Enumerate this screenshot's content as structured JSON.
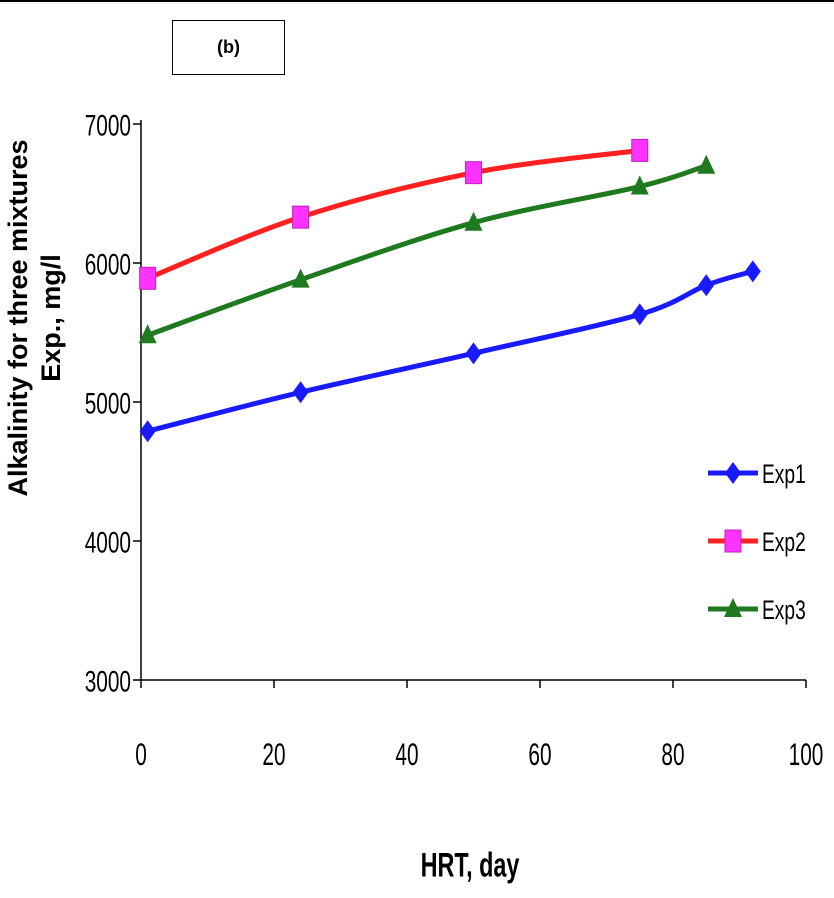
{
  "panel_label": "(b)",
  "chart_data": {
    "type": "line",
    "title": "",
    "xlabel": "HRT, day",
    "ylabel_line1": "Alkalinity for three mixtures",
    "ylabel_line2": "Exp., mg/l",
    "xlim": [
      0,
      100
    ],
    "ylim": [
      3000,
      7000
    ],
    "xticks": [
      0,
      20,
      40,
      60,
      80,
      100
    ],
    "yticks": [
      3000,
      4000,
      5000,
      6000,
      7000
    ],
    "xtick_labels": [
      "0",
      "20",
      "40",
      "60",
      "80",
      "100"
    ],
    "ytick_labels": [
      "3000",
      "4000",
      "5000",
      "6000",
      "7000"
    ],
    "grid": false,
    "legend_position": "right",
    "series": [
      {
        "name": "Exp1",
        "color": "#1a1aff",
        "marker": "diamond",
        "x": [
          1,
          24,
          50,
          75,
          85,
          92
        ],
        "y": [
          4790,
          5070,
          5350,
          5630,
          5840,
          5940
        ]
      },
      {
        "name": "Exp2",
        "color": "#ff2020",
        "marker": "square",
        "marker_color": "#ff33ff",
        "x": [
          1,
          24,
          50,
          75
        ],
        "y": [
          5890,
          6330,
          6650,
          6810
        ]
      },
      {
        "name": "Exp3",
        "color": "#1f7a1f",
        "marker": "triangle",
        "x": [
          1,
          24,
          50,
          75,
          85
        ],
        "y": [
          5480,
          5880,
          6290,
          6550,
          6700
        ]
      }
    ]
  }
}
